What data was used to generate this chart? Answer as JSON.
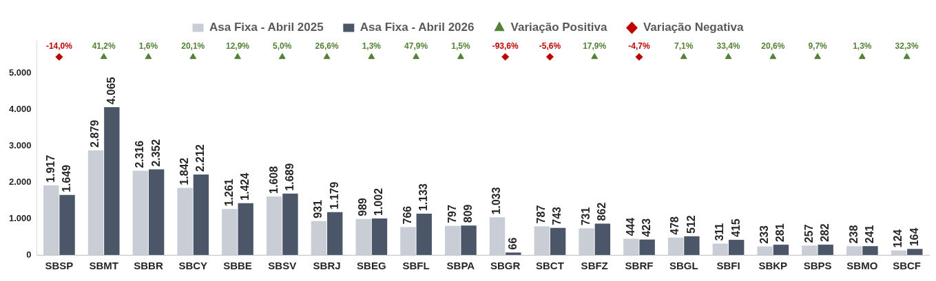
{
  "chart_data": {
    "type": "bar",
    "categories": [
      "SBSP",
      "SBMT",
      "SBBR",
      "SBCY",
      "SBBE",
      "SBSV",
      "SBRJ",
      "SBEG",
      "SBFL",
      "SBPA",
      "SBGR",
      "SBCT",
      "SBFZ",
      "SBRF",
      "SBGL",
      "SBFI",
      "SBKP",
      "SBPS",
      "SBMO",
      "SBCF"
    ],
    "series": [
      {
        "name": "Asa Fixa - Abril 2025",
        "color": "#c9ced6",
        "values": [
          1917,
          2879,
          2316,
          1842,
          1261,
          1608,
          931,
          989,
          766,
          797,
          1033,
          787,
          731,
          444,
          478,
          311,
          233,
          257,
          238,
          124
        ],
        "value_labels": [
          "1.917",
          "2.879",
          "2.316",
          "1.842",
          "1.261",
          "1.608",
          "931",
          "989",
          "766",
          "797",
          "1.033",
          "787",
          "731",
          "444",
          "478",
          "311",
          "233",
          "257",
          "238",
          "124"
        ]
      },
      {
        "name": "Asa Fixa - Abril 2026",
        "color": "#4b5669",
        "values": [
          1649,
          4065,
          2352,
          2212,
          1424,
          1689,
          1179,
          1002,
          1133,
          809,
          66,
          743,
          862,
          423,
          512,
          415,
          281,
          282,
          241,
          164
        ],
        "value_labels": [
          "1.649",
          "4.065",
          "2.352",
          "2.212",
          "1.424",
          "1.689",
          "1.179",
          "1.002",
          "1.133",
          "809",
          "66",
          "743",
          "862",
          "423",
          "512",
          "415",
          "281",
          "282",
          "241",
          "164"
        ]
      },
      {
        "name": "Variação Positiva",
        "type": "scatter",
        "marker": "triangle",
        "color": "#548235",
        "x": [
          "SBMT",
          "SBBR",
          "SBCY",
          "SBBE",
          "SBSV",
          "SBRJ",
          "SBEG",
          "SBFL",
          "SBPA",
          "SBFZ",
          "SBGL",
          "SBFI",
          "SBKP",
          "SBPS",
          "SBMO",
          "SBCF"
        ],
        "values": [
          5450,
          5450,
          5450,
          5450,
          5450,
          5450,
          5450,
          5450,
          5450,
          5450,
          5450,
          5450,
          5450,
          5450,
          5450,
          5450
        ]
      },
      {
        "name": "Variação Negativa",
        "type": "scatter",
        "marker": "diamond",
        "color": "#c00000",
        "x": [
          "SBSP",
          "SBGR",
          "SBCT",
          "SBRF"
        ],
        "values": [
          5450,
          5450,
          5450,
          5450
        ]
      }
    ],
    "annotations": [
      {
        "text": "-14,0%",
        "x": "SBSP",
        "y": 5450
      },
      {
        "text": "41,2%",
        "x": "SBMT",
        "y": 5450
      },
      {
        "text": "1,6%",
        "x": "SBBR",
        "y": 5450
      },
      {
        "text": "20,1%",
        "x": "SBCY",
        "y": 5450
      },
      {
        "text": "12,9%",
        "x": "SBBE",
        "y": 5450
      },
      {
        "text": "5,0%",
        "x": "SBSV",
        "y": 5450
      },
      {
        "text": "26,6%",
        "x": "SBRJ",
        "y": 5450
      },
      {
        "text": "1,3%",
        "x": "SBEG",
        "y": 5450
      },
      {
        "text": "47,9%",
        "x": "SBFL",
        "y": 5450
      },
      {
        "text": "1,5%",
        "x": "SBPA",
        "y": 5450
      },
      {
        "text": "-93,6%",
        "x": "SBGR",
        "y": 5450
      },
      {
        "text": "-5,6%",
        "x": "SBCT",
        "y": 5450
      },
      {
        "text": "17,9%",
        "x": "SBFZ",
        "y": 5450
      },
      {
        "text": "-4,7%",
        "x": "SBRF",
        "y": 5450
      },
      {
        "text": "7,1%",
        "x": "SBGL",
        "y": 5450
      },
      {
        "text": "33,4%",
        "x": "SBFI",
        "y": 5450
      },
      {
        "text": "20,6%",
        "x": "SBKP",
        "y": 5450
      },
      {
        "text": "9,7%",
        "x": "SBPS",
        "y": 5450
      },
      {
        "text": "1,3%",
        "x": "SBMO",
        "y": 5450
      },
      {
        "text": "32,3%",
        "x": "SBCF",
        "y": 5450
      }
    ],
    "ylim": [
      0,
      5900
    ],
    "yticks": [
      {
        "value": 0,
        "label": "0"
      },
      {
        "value": 1000,
        "label": "1.000"
      },
      {
        "value": 2000,
        "label": "2.000"
      },
      {
        "value": 3000,
        "label": "3.000"
      },
      {
        "value": 4000,
        "label": "4.000"
      },
      {
        "value": 5000,
        "label": "5.000"
      }
    ],
    "grid": false,
    "legend": "top"
  }
}
